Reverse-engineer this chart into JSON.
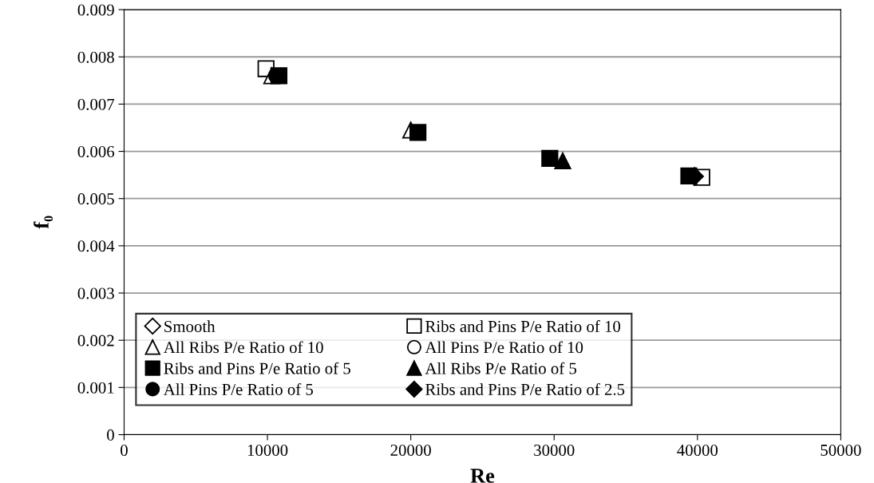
{
  "chart_data": {
    "type": "scatter",
    "xlabel": "Re",
    "ylabel": "f₀",
    "xlim": [
      0,
      50000
    ],
    "xticks": [
      0,
      10000,
      20000,
      30000,
      40000,
      50000
    ],
    "ylim": [
      0,
      0.009
    ],
    "yticks": [
      0,
      0.001,
      0.002,
      0.003,
      0.004,
      0.005,
      0.006,
      0.007,
      0.008,
      0.009
    ],
    "grid": "y",
    "legend": "bottom left",
    "series": [
      {
        "name": "Smooth",
        "color": "#ffffff",
        "marker": "diamond",
        "x": [
          null,
          null,
          null,
          null
        ],
        "values": [
          null,
          null,
          null,
          null
        ]
      },
      {
        "name": "Ribs and Pins P/e Ratio of 10",
        "color": "#ffffff",
        "marker": "square",
        "x": [
          9900,
          null,
          null,
          40300
        ],
        "values": [
          0.00775,
          null,
          null,
          0.00545
        ]
      },
      {
        "name": "All Ribs P/e Ratio of 10",
        "color": "#ffffff",
        "marker": "triangle",
        "x": [
          10300,
          20000,
          null,
          null
        ],
        "values": [
          0.0076,
          0.00645,
          null,
          null
        ]
      },
      {
        "name": "All Pins P/e Ratio of 10",
        "color": "#ffffff",
        "marker": "circle",
        "x": [
          null,
          null,
          null,
          null
        ],
        "values": [
          null,
          null,
          null,
          null
        ]
      },
      {
        "name": "Ribs and Pins P/e Ratio of 5",
        "color": "#000000",
        "marker": "square",
        "x": [
          10800,
          20500,
          29700,
          39400
        ],
        "values": [
          0.0076,
          0.0064,
          0.00585,
          0.00548
        ]
      },
      {
        "name": "All Ribs P/e Ratio of 5",
        "color": "#000000",
        "marker": "triangle",
        "x": [
          null,
          null,
          30600,
          null
        ],
        "values": [
          null,
          null,
          0.0058,
          null
        ]
      },
      {
        "name": "All Pins P/e Ratio of 5",
        "color": "#000000",
        "marker": "circle",
        "x": [
          10600,
          null,
          null,
          null
        ],
        "values": [
          0.0076,
          null,
          null,
          null
        ]
      },
      {
        "name": "Ribs and Pins P/e Ratio of 2.5",
        "color": "#000000",
        "marker": "diamond",
        "x": [
          null,
          null,
          null,
          39800
        ],
        "values": [
          null,
          null,
          null,
          0.00547
        ]
      }
    ]
  }
}
